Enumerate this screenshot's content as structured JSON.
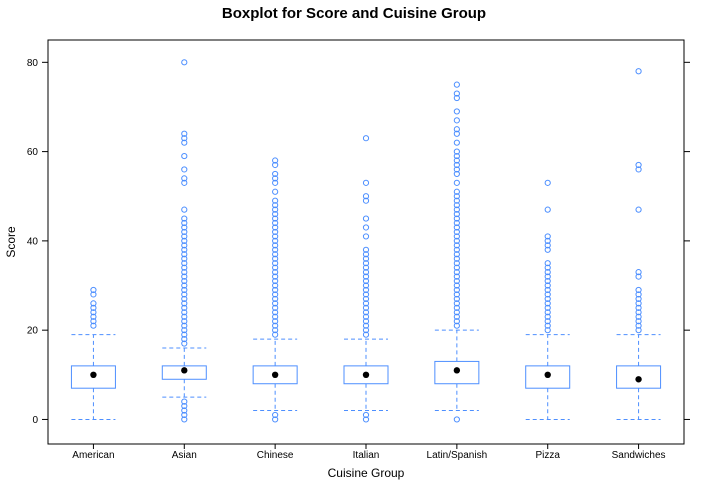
{
  "chart_data": {
    "type": "boxplot",
    "title": "Boxplot for Score and Cuisine Group",
    "xlabel": "Cuisine Group",
    "ylabel": "Score",
    "ylim": [
      -5.5,
      85
    ],
    "yticks": [
      0,
      20,
      40,
      60,
      80
    ],
    "categories": [
      "American",
      "Asian",
      "Chinese",
      "Italian",
      "Latin/Spanish",
      "Pizza",
      "Sandwiches"
    ],
    "colors": {
      "box": "#4d8fff",
      "median": "#000000",
      "frame": "#000000"
    },
    "boxes": [
      {
        "category": "American",
        "whisker_low": 0,
        "q1": 7,
        "median": 10,
        "q3": 12,
        "whisker_high": 19,
        "outliers": [
          21,
          22,
          23,
          24,
          25,
          26,
          28,
          29
        ]
      },
      {
        "category": "Asian",
        "whisker_low": 5,
        "q1": 9,
        "median": 11,
        "q3": 12,
        "whisker_high": 16,
        "outliers": [
          0,
          1,
          2,
          3,
          4,
          17,
          18,
          19,
          20,
          21,
          22,
          23,
          24,
          25,
          26,
          27,
          28,
          29,
          30,
          31,
          32,
          33,
          34,
          35,
          36,
          37,
          38,
          39,
          40,
          41,
          42,
          43,
          44,
          45,
          47,
          53,
          54,
          56,
          59,
          62,
          63,
          64,
          80
        ]
      },
      {
        "category": "Chinese",
        "whisker_low": 2,
        "q1": 8,
        "median": 10,
        "q3": 12,
        "whisker_high": 18,
        "outliers": [
          0,
          1,
          19,
          20,
          21,
          22,
          23,
          24,
          25,
          26,
          27,
          28,
          29,
          30,
          31,
          32,
          33,
          34,
          35,
          36,
          37,
          38,
          39,
          40,
          41,
          42,
          43,
          44,
          45,
          46,
          47,
          48,
          49,
          51,
          53,
          54,
          55,
          57,
          58
        ]
      },
      {
        "category": "Italian",
        "whisker_low": 2,
        "q1": 8,
        "median": 10,
        "q3": 12,
        "whisker_high": 18,
        "outliers": [
          0,
          1,
          19,
          20,
          21,
          22,
          23,
          24,
          25,
          26,
          27,
          28,
          29,
          30,
          31,
          32,
          33,
          34,
          35,
          36,
          37,
          38,
          41,
          43,
          45,
          49,
          50,
          53,
          63
        ]
      },
      {
        "category": "Latin/Spanish",
        "whisker_low": 2,
        "q1": 8,
        "median": 11,
        "q3": 13,
        "whisker_high": 20,
        "outliers": [
          0,
          21,
          22,
          23,
          24,
          25,
          26,
          27,
          28,
          29,
          30,
          31,
          32,
          33,
          34,
          35,
          36,
          37,
          38,
          39,
          40,
          41,
          42,
          43,
          44,
          45,
          46,
          47,
          48,
          49,
          50,
          51,
          53,
          55,
          56,
          57,
          58,
          59,
          60,
          62,
          64,
          65,
          67,
          69,
          72,
          73,
          75
        ]
      },
      {
        "category": "Pizza",
        "whisker_low": 0,
        "q1": 7,
        "median": 10,
        "q3": 12,
        "whisker_high": 19,
        "outliers": [
          20,
          21,
          22,
          23,
          24,
          25,
          26,
          27,
          28,
          29,
          30,
          31,
          32,
          33,
          34,
          35,
          38,
          39,
          40,
          41,
          47,
          53
        ]
      },
      {
        "category": "Sandwiches",
        "whisker_low": 0,
        "q1": 7,
        "median": 9,
        "q3": 12,
        "whisker_high": 19,
        "outliers": [
          20,
          21,
          22,
          23,
          24,
          25,
          26,
          27,
          28,
          29,
          32,
          33,
          47,
          56,
          57,
          78
        ]
      }
    ]
  }
}
